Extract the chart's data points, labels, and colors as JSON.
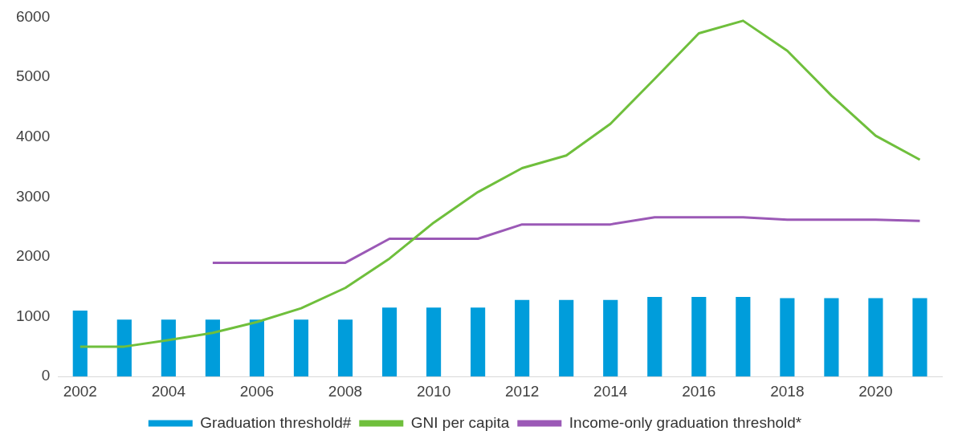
{
  "chart_data": {
    "type": "bar",
    "categories": [
      "2002",
      null,
      "2004",
      null,
      "2006",
      null,
      "2008",
      null,
      "2010",
      null,
      "2012",
      null,
      "2014",
      null,
      "2016",
      null,
      "2018",
      null,
      "2020",
      null
    ],
    "series": [
      {
        "name": "Graduation threshold#",
        "color": "#009ddb",
        "values": [
          1100,
          950,
          950,
          950,
          950,
          950,
          950,
          1150,
          1150,
          1150,
          1280,
          1280,
          1280,
          1330,
          1330,
          1330,
          1310,
          1310,
          1310,
          1310
        ]
      },
      {
        "name": "GNI per capita",
        "type": "line",
        "color": "#6fbf3c",
        "values": [
          500,
          500,
          610,
          730,
          910,
          1140,
          1480,
          1970,
          2570,
          3080,
          3480,
          3690,
          4220,
          4970,
          5730,
          5940,
          5440,
          4690,
          4020,
          3620
        ]
      },
      {
        "name": "Income-only graduation threshold*",
        "type": "line",
        "color": "#9b59b6",
        "values": [
          null,
          null,
          null,
          1900,
          1900,
          1900,
          1900,
          2300,
          2300,
          2300,
          2540,
          2540,
          2540,
          2660,
          2660,
          2660,
          2620,
          2620,
          2620,
          2600
        ]
      }
    ],
    "ylim": [
      0,
      6000
    ],
    "yticks": [
      0,
      1000,
      2000,
      3000,
      4000,
      5000,
      6000
    ],
    "grid": false,
    "legend": "bottom",
    "marker": "none",
    "line_style": "solid"
  }
}
